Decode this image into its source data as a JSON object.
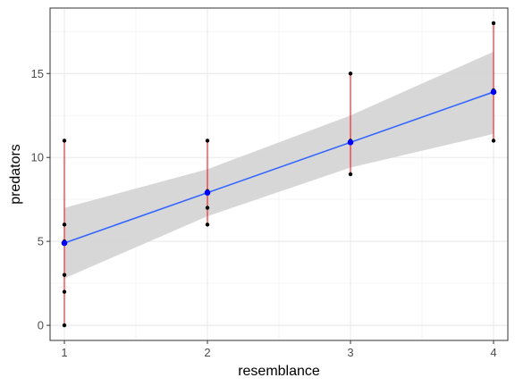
{
  "chart_data": {
    "type": "scatter",
    "title": "",
    "xlabel": "resemblance",
    "ylabel": "predators",
    "xlim": [
      0.9,
      4.1
    ],
    "ylim": [
      -0.9,
      18.9
    ],
    "x_ticks": [
      1,
      2,
      3,
      4
    ],
    "x_tick_labels": [
      "1",
      "2",
      "3",
      "4"
    ],
    "y_ticks": [
      0,
      5,
      10,
      15
    ],
    "y_tick_labels": [
      "0",
      "5",
      "10",
      "15"
    ],
    "grid": true,
    "legend": "none",
    "points": [
      {
        "x": 1,
        "y": 0
      },
      {
        "x": 1,
        "y": 2
      },
      {
        "x": 1,
        "y": 3
      },
      {
        "x": 1,
        "y": 5
      },
      {
        "x": 1,
        "y": 6
      },
      {
        "x": 1,
        "y": 11
      },
      {
        "x": 2,
        "y": 6
      },
      {
        "x": 2,
        "y": 7
      },
      {
        "x": 2,
        "y": 8
      },
      {
        "x": 2,
        "y": 11
      },
      {
        "x": 3,
        "y": 9
      },
      {
        "x": 3,
        "y": 11
      },
      {
        "x": 3,
        "y": 15
      },
      {
        "x": 4,
        "y": 11
      },
      {
        "x": 4,
        "y": 14
      },
      {
        "x": 4,
        "y": 18
      }
    ],
    "ranges": [
      {
        "x": 1,
        "ymin": 0,
        "ymax": 11
      },
      {
        "x": 2,
        "ymin": 6,
        "ymax": 11
      },
      {
        "x": 3,
        "ymin": 9,
        "ymax": 15
      },
      {
        "x": 4,
        "ymin": 11,
        "ymax": 18
      }
    ],
    "means": [
      {
        "x": 1,
        "y": 4.9
      },
      {
        "x": 2,
        "y": 7.9
      },
      {
        "x": 3,
        "y": 10.9
      },
      {
        "x": 4,
        "y": 13.9
      }
    ],
    "fit_line": {
      "x": [
        1,
        4
      ],
      "y": [
        4.9,
        13.9
      ]
    },
    "confidence_band": {
      "x": [
        1,
        2,
        3,
        4
      ],
      "lower": [
        2.8,
        6.5,
        9.4,
        11.4
      ],
      "upper": [
        7.0,
        9.3,
        12.5,
        16.3
      ]
    },
    "colors": {
      "points": "#000000",
      "range_lines": "#ff0000",
      "mean_points": "#0000ff",
      "fit_line": "#3366ff",
      "band": "#d3d3d3",
      "grid_major": "#ebebeb",
      "grid_minor": "#f5f5f5",
      "panel_border": "#333333"
    }
  }
}
